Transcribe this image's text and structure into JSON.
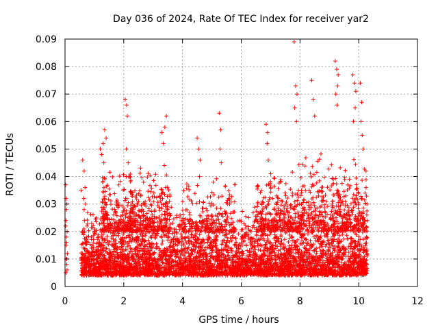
{
  "chart_data": {
    "type": "scatter",
    "title": "Day 036 of 2024, Rate Of TEC Index for receiver yar2",
    "xlabel": "GPS time / hours",
    "ylabel": "ROTI / TECUs",
    "xlim": [
      0,
      12
    ],
    "ylim": [
      0,
      0.09
    ],
    "x_ticks": [
      0,
      2,
      4,
      6,
      8,
      10,
      12
    ],
    "x_tick_labels": [
      "0",
      "2",
      "4",
      "6",
      "8",
      "10",
      "12"
    ],
    "y_ticks": [
      0,
      0.01,
      0.02,
      0.03,
      0.04,
      0.05,
      0.06,
      0.07,
      0.08,
      0.09
    ],
    "y_tick_labels": [
      "0",
      "0.01",
      "0.02",
      "0.03",
      "0.04",
      "0.05",
      "0.06",
      "0.07",
      "0.08",
      "0.09"
    ],
    "grid": true,
    "marker": "+",
    "color": "#ff0000",
    "series": [
      {
        "name": "ROTI",
        "x": [
          0.02,
          0.03,
          0.04,
          0.05,
          0.06,
          0.07,
          0.08,
          0.02,
          0.04,
          0.06,
          0.05,
          0.03,
          0.07,
          0.05,
          0.04,
          0.06,
          0.55,
          0.6,
          0.65,
          0.7,
          0.75,
          0.8,
          0.6,
          0.65,
          0.7,
          0.72,
          0.68,
          0.62,
          0.58,
          0.74,
          0.66,
          0.64,
          1.2,
          1.25,
          1.3,
          1.35,
          1.4,
          1.32,
          1.28,
          1.38,
          1.42,
          1.36,
          1.3,
          1.33,
          2.05,
          2.1,
          2.12,
          2.15,
          2.08,
          2.11,
          2.14,
          2.09,
          3.3,
          3.35,
          3.4,
          3.45,
          3.38,
          3.42,
          3.5,
          3.55,
          4.5,
          4.55,
          4.6,
          4.58,
          5.25,
          5.3,
          5.28,
          5.32,
          6.85,
          6.9,
          6.88,
          6.92,
          7.8,
          7.85,
          7.9,
          7.82,
          7.88,
          8.4,
          8.45,
          8.5,
          9.2,
          9.25,
          9.3,
          9.28,
          9.22,
          9.26,
          9.8,
          9.85,
          9.9,
          9.88,
          9.82,
          10.05,
          10.1,
          10.08,
          10.12,
          10.15,
          10.25,
          10.28,
          10.3,
          10.26,
          10.29
        ],
        "y": [
          0.037,
          0.024,
          0.032,
          0.018,
          0.01,
          0.006,
          0.012,
          0.022,
          0.015,
          0.008,
          0.028,
          0.005,
          0.02,
          0.016,
          0.01,
          0.03,
          0.035,
          0.046,
          0.042,
          0.03,
          0.022,
          0.012,
          0.02,
          0.028,
          0.016,
          0.008,
          0.036,
          0.014,
          0.01,
          0.018,
          0.024,
          0.032,
          0.05,
          0.048,
          0.052,
          0.057,
          0.054,
          0.045,
          0.038,
          0.03,
          0.025,
          0.02,
          0.015,
          0.01,
          0.068,
          0.066,
          0.062,
          0.045,
          0.04,
          0.032,
          0.025,
          0.05,
          0.056,
          0.052,
          0.058,
          0.062,
          0.044,
          0.036,
          0.028,
          0.02,
          0.054,
          0.05,
          0.046,
          0.04,
          0.063,
          0.057,
          0.05,
          0.045,
          0.059,
          0.056,
          0.052,
          0.046,
          0.089,
          0.073,
          0.07,
          0.065,
          0.06,
          0.075,
          0.068,
          0.062,
          0.082,
          0.079,
          0.077,
          0.073,
          0.07,
          0.066,
          0.077,
          0.074,
          0.071,
          0.065,
          0.06,
          0.074,
          0.067,
          0.06,
          0.055,
          0.05,
          0.036,
          0.03,
          0.024,
          0.018,
          0.012
        ]
      }
    ],
    "density": [
      {
        "x0": 0.55,
        "x1": 2.0,
        "base": 0.004,
        "span": 0.024,
        "n": 700
      },
      {
        "x0": 1.2,
        "x1": 2.3,
        "base": 0.02,
        "span": 0.025,
        "n": 220
      },
      {
        "x0": 2.0,
        "x1": 4.0,
        "base": 0.004,
        "span": 0.026,
        "n": 900
      },
      {
        "x0": 2.2,
        "x1": 3.6,
        "base": 0.02,
        "span": 0.025,
        "n": 260
      },
      {
        "x0": 4.0,
        "x1": 6.0,
        "base": 0.004,
        "span": 0.024,
        "n": 850
      },
      {
        "x0": 4.0,
        "x1": 5.8,
        "base": 0.02,
        "span": 0.02,
        "n": 200
      },
      {
        "x0": 6.0,
        "x1": 8.0,
        "base": 0.004,
        "span": 0.026,
        "n": 900
      },
      {
        "x0": 6.5,
        "x1": 8.0,
        "base": 0.02,
        "span": 0.025,
        "n": 280
      },
      {
        "x0": 8.0,
        "x1": 10.3,
        "base": 0.004,
        "span": 0.028,
        "n": 1000
      },
      {
        "x0": 8.0,
        "x1": 10.3,
        "base": 0.02,
        "span": 0.03,
        "n": 380
      }
    ]
  }
}
